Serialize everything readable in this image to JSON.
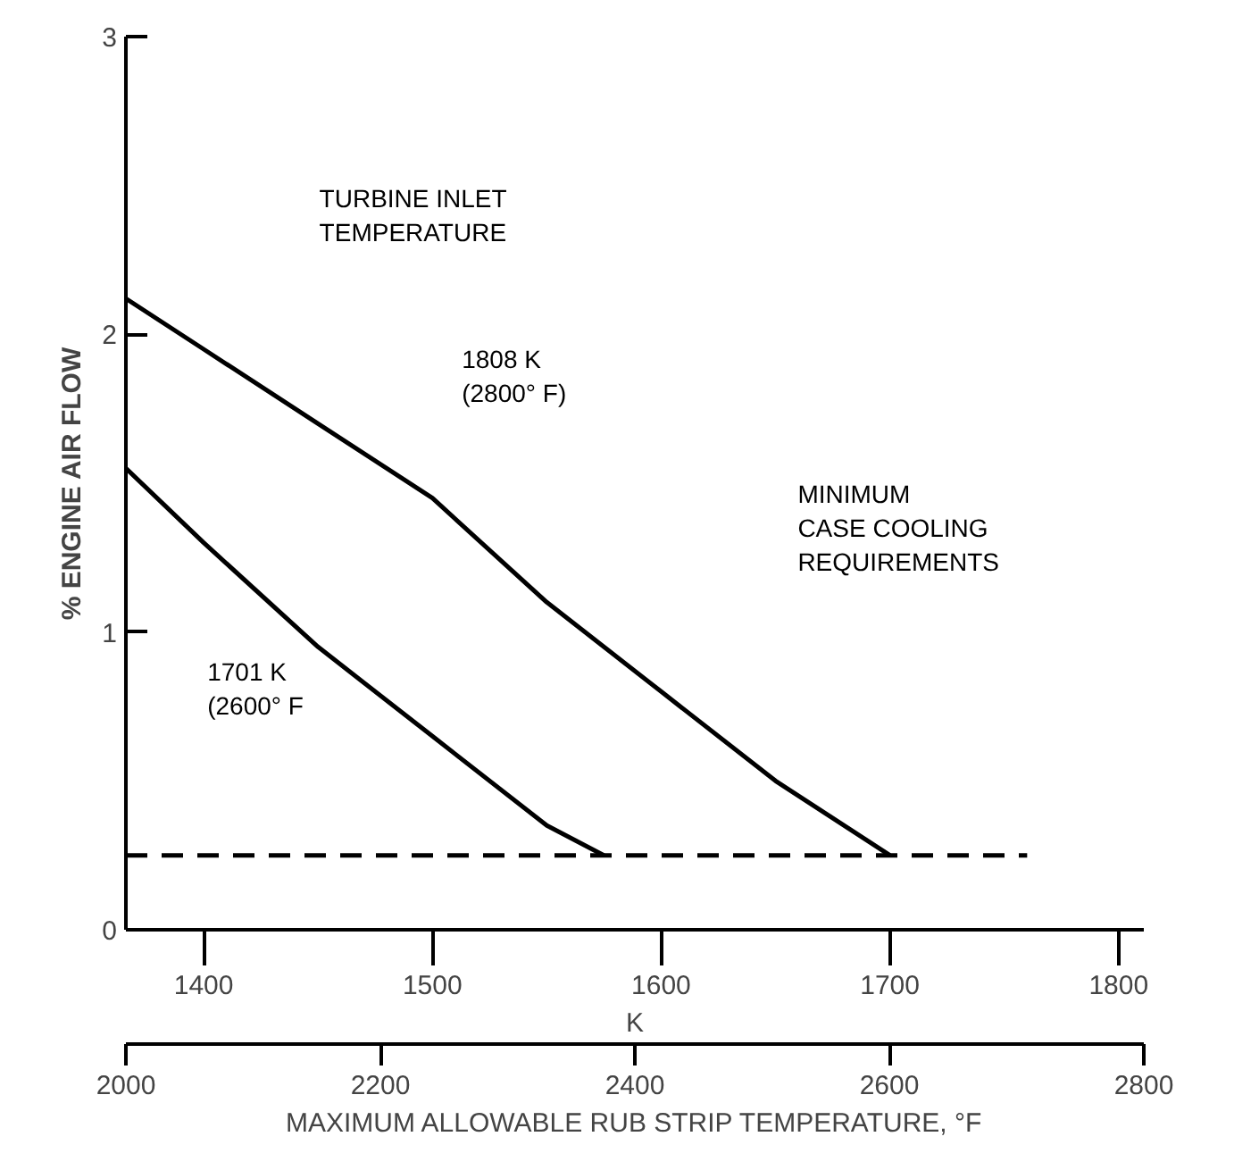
{
  "chart_data": {
    "type": "line",
    "xlabel": "K",
    "ylabel": "% ENGINE AIR FLOW",
    "x2label": "MAXIMUM ALLOWABLE RUB STRIP TEMPERATURE, °F",
    "xlim": [
      1366,
      1811
    ],
    "xticks": [
      1400,
      1500,
      1600,
      1700,
      1800
    ],
    "x2lim": [
      2000,
      2800
    ],
    "x2ticks": [
      2000,
      2200,
      2400,
      2600,
      2800
    ],
    "ylim": [
      0,
      3
    ],
    "yticks": [
      0,
      1,
      2,
      3
    ],
    "grid": false,
    "series": [
      {
        "color": "#000000",
        "line_style": "solid",
        "x": [
          1366,
          1400,
          1450,
          1500,
          1550,
          1600,
          1650,
          1700
        ],
        "values": [
          2.12,
          1.95,
          1.7,
          1.45,
          1.1,
          0.8,
          0.5,
          0.25
        ]
      },
      {
        "color": "#000000",
        "line_style": "solid",
        "x": [
          1366,
          1400,
          1450,
          1500,
          1550,
          1575
        ],
        "values": [
          1.55,
          1.3,
          0.95,
          0.65,
          0.35,
          0.25
        ]
      },
      {
        "color": "#000000",
        "line_style": "dashed",
        "x": [
          1366,
          1760
        ],
        "values": [
          0.25,
          0.25
        ]
      }
    ],
    "annotations": [
      "TURBINE INLET\nTEMPERATURE",
      "1808 K\n(2800° F)",
      "1701 K\n(2600° F",
      "MINIMUM\nCASE COOLING\nREQUIREMENTS"
    ]
  }
}
